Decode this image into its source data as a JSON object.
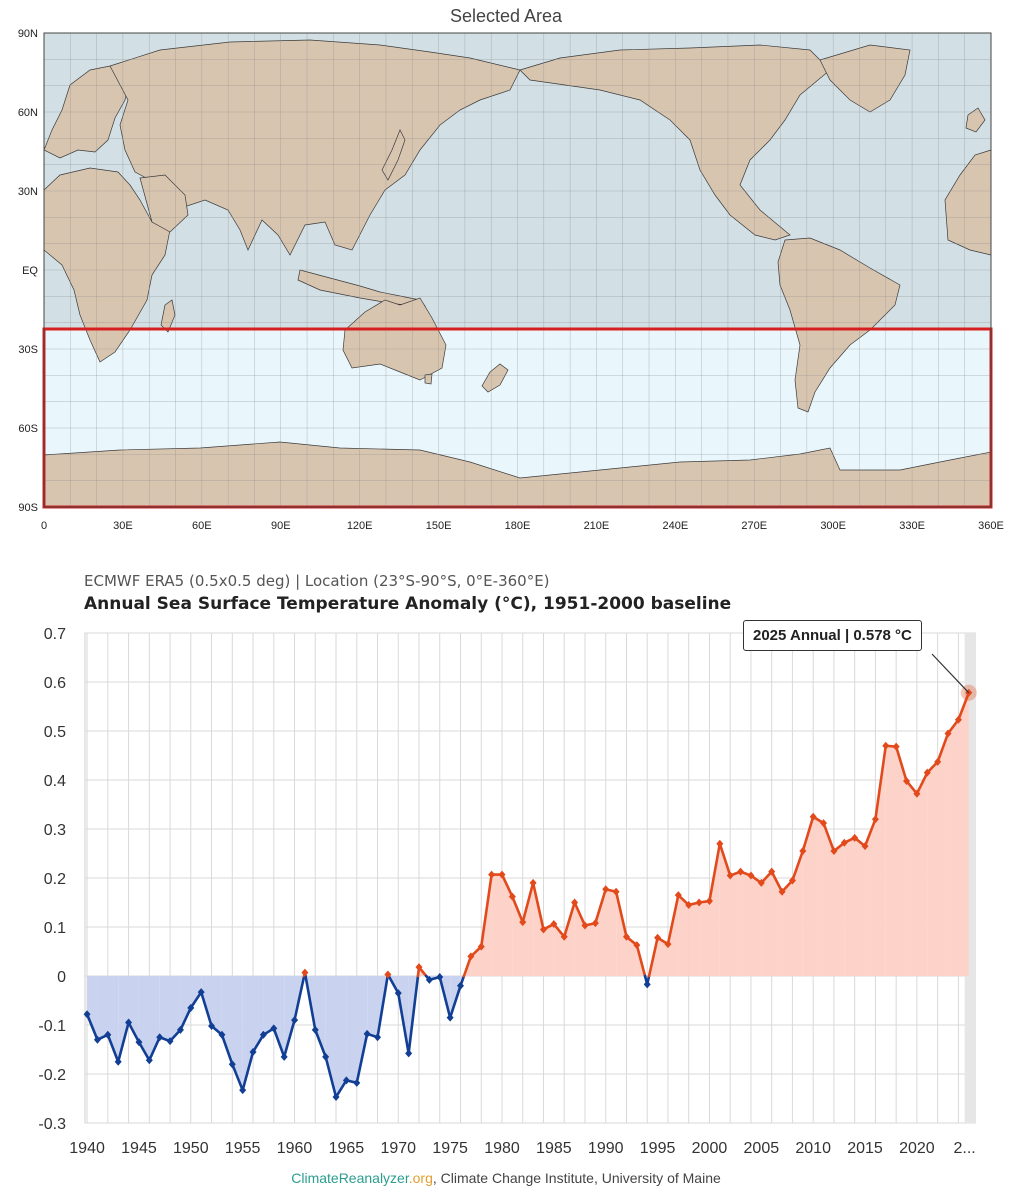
{
  "map": {
    "title": "Selected Area",
    "lat_labels": [
      "90N",
      "60N",
      "30N",
      "EQ",
      "30S",
      "60S",
      "90S"
    ],
    "lon_labels": [
      "0",
      "30E",
      "60E",
      "90E",
      "120E",
      "150E",
      "180E",
      "210E",
      "240E",
      "270E",
      "300E",
      "330E",
      "360E"
    ],
    "colors": {
      "ocean": "#d2dfe4",
      "land": "#d8c5b0",
      "selection_fill": "#e9f6fb",
      "selection_border": "#d62020"
    }
  },
  "chart": {
    "subtitle": "ECMWF ERA5 (0.5x0.5 deg) | Location (23°S-90°S, 0°E-360°E)",
    "title": "Annual Sea Surface Temperature Anomaly (°C), 1951-2000 baseline",
    "tooltip": "2025 Annual | 0.578 °C",
    "footer_brand": "ClimateReanalyzer",
    "footer_org": ".org",
    "footer_rest": ", Climate Change Institute, University of Maine"
  },
  "chart_data": {
    "type": "area",
    "x_label": "",
    "y_label": "",
    "ylim": [
      -0.3,
      0.7
    ],
    "yticks": [
      "0.7",
      "0.6",
      "0.5",
      "0.4",
      "0.3",
      "0.2",
      "0.1",
      "0",
      "-0.1",
      "-0.2",
      "-0.3"
    ],
    "xticks": [
      "1940",
      "1945",
      "1950",
      "1955",
      "1960",
      "1965",
      "1970",
      "1975",
      "1980",
      "1985",
      "1990",
      "1995",
      "2000",
      "2005",
      "2010",
      "2015",
      "2020",
      "2..."
    ],
    "grid": true,
    "colors": {
      "positive": "#e24a1c",
      "negative": "#123f94",
      "positive_fill": "#fdd2c8",
      "negative_fill": "#c9d3ef"
    },
    "x": [
      1940,
      1941,
      1942,
      1943,
      1944,
      1945,
      1946,
      1947,
      1948,
      1949,
      1950,
      1951,
      1952,
      1953,
      1954,
      1955,
      1956,
      1957,
      1958,
      1959,
      1960,
      1961,
      1962,
      1963,
      1964,
      1965,
      1966,
      1967,
      1968,
      1969,
      1970,
      1971,
      1972,
      1973,
      1974,
      1975,
      1976,
      1977,
      1978,
      1979,
      1980,
      1981,
      1982,
      1983,
      1984,
      1985,
      1986,
      1987,
      1988,
      1989,
      1990,
      1991,
      1992,
      1993,
      1994,
      1995,
      1996,
      1997,
      1998,
      1999,
      2000,
      2001,
      2002,
      2003,
      2004,
      2005,
      2006,
      2007,
      2008,
      2009,
      2010,
      2011,
      2012,
      2013,
      2014,
      2015,
      2016,
      2017,
      2018,
      2019,
      2020,
      2021,
      2022,
      2023,
      2024,
      2025
    ],
    "values": [
      -0.078,
      -0.13,
      -0.12,
      -0.175,
      -0.095,
      -0.135,
      -0.172,
      -0.125,
      -0.133,
      -0.11,
      -0.065,
      -0.033,
      -0.102,
      -0.12,
      -0.18,
      -0.233,
      -0.155,
      -0.12,
      -0.107,
      -0.165,
      -0.09,
      0.007,
      -0.11,
      -0.165,
      -0.247,
      -0.213,
      -0.218,
      -0.118,
      -0.125,
      0.003,
      -0.035,
      -0.158,
      0.018,
      -0.008,
      -0.002,
      -0.085,
      -0.02,
      0.04,
      0.06,
      0.207,
      0.207,
      0.162,
      0.11,
      0.19,
      0.095,
      0.106,
      0.08,
      0.15,
      0.103,
      0.108,
      0.177,
      0.172,
      0.08,
      0.063,
      -0.017,
      0.078,
      0.065,
      0.165,
      0.145,
      0.15,
      0.153,
      0.27,
      0.205,
      0.213,
      0.205,
      0.19,
      0.213,
      0.172,
      0.195,
      0.255,
      0.325,
      0.312,
      0.255,
      0.272,
      0.282,
      0.265,
      0.32,
      0.47,
      0.468,
      0.398,
      0.372,
      0.415,
      0.437,
      0.495,
      0.523,
      0.578
    ]
  }
}
